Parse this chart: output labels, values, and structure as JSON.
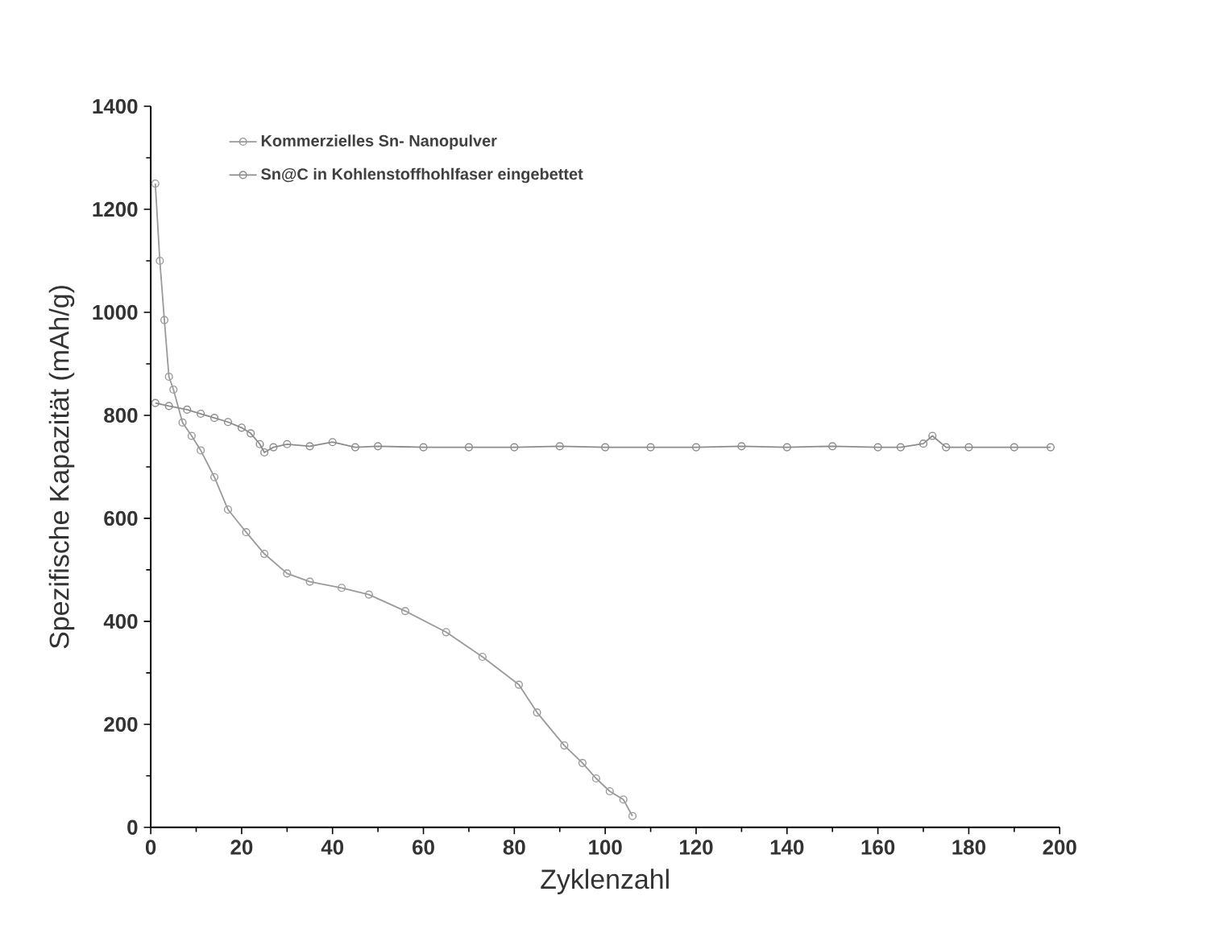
{
  "chart_data": {
    "type": "line",
    "xlabel": "Zyklenzahl",
    "ylabel": "Spezifische Kapazität (mAh/g)",
    "xlim": [
      0,
      200
    ],
    "ylim": [
      0,
      1400
    ],
    "xticks": [
      0,
      20,
      40,
      60,
      80,
      100,
      120,
      140,
      160,
      180,
      200
    ],
    "yticks": [
      0,
      200,
      400,
      600,
      800,
      1000,
      1200,
      1400
    ],
    "marker": "circle",
    "line_style": "solid",
    "legend": "top left",
    "grid": false,
    "series": [
      {
        "name": "Kommerzielles Sn- Nanopulver",
        "color": "#9a9a9a",
        "x": [
          1,
          2,
          3,
          4,
          5,
          7,
          9,
          11,
          14,
          17,
          21,
          25,
          30,
          35,
          42,
          48,
          56,
          65,
          73,
          81,
          85,
          91,
          95,
          98,
          101,
          104,
          106
        ],
        "values": [
          1250,
          1100,
          985,
          875,
          850,
          786,
          760,
          732,
          680,
          617,
          573,
          531,
          493,
          477,
          465,
          452,
          420,
          379,
          331,
          277,
          223,
          159,
          125,
          95,
          70,
          54,
          22
        ]
      },
      {
        "name": "Sn@C in Kohlenstoffhohlfaser eingebettet",
        "color": "#8c8c8c",
        "x": [
          1,
          4,
          8,
          11,
          14,
          17,
          20,
          22,
          24,
          25,
          27,
          30,
          35,
          40,
          45,
          50,
          60,
          70,
          80,
          90,
          100,
          110,
          120,
          130,
          140,
          150,
          160,
          165,
          170,
          172,
          175,
          180,
          190,
          198
        ],
        "values": [
          824,
          818,
          811,
          803,
          795,
          787,
          776,
          765,
          744,
          728,
          738,
          744,
          740,
          748,
          738,
          740,
          738,
          738,
          738,
          740,
          738,
          738,
          738,
          740,
          738,
          740,
          738,
          738,
          745,
          760,
          738,
          738,
          738,
          738
        ]
      }
    ]
  }
}
